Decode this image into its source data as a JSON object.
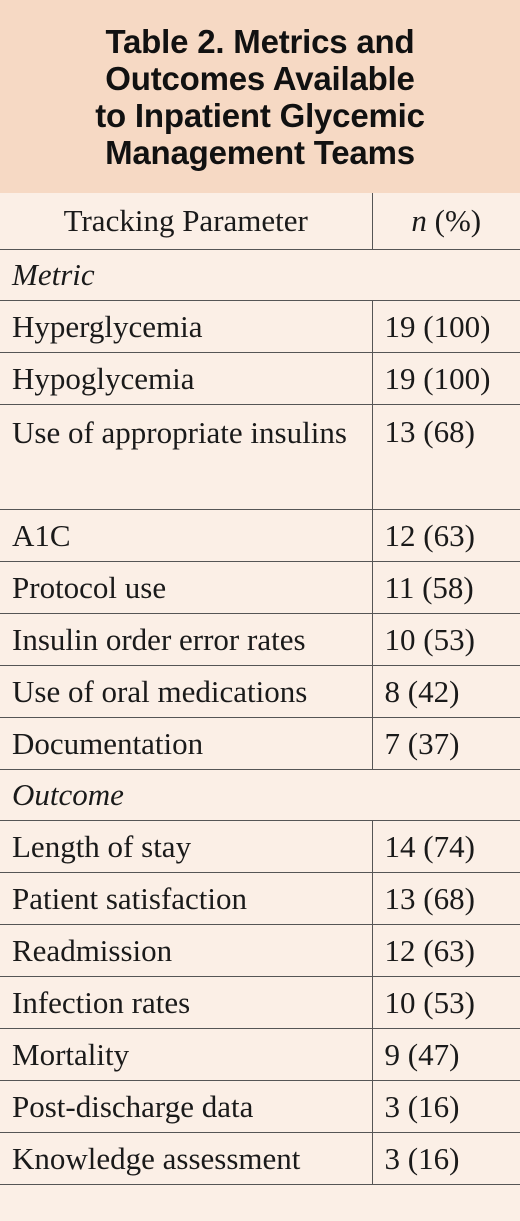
{
  "title": "Table 2. Metrics and\nOutcomes Available\nto Inpatient Glycemic\nManagement Teams",
  "header": {
    "col1": "Tracking Parameter",
    "col2_n": "n",
    "col2_rest": " (%)"
  },
  "sections": [
    {
      "label": "Metric",
      "rows": [
        {
          "parameter": "Hyperglycemia",
          "value": "19 (100)"
        },
        {
          "parameter": "Hypoglycemia",
          "value": "19 (100)"
        },
        {
          "parameter": "Use of appropriate insulins",
          "value": "13 (68)"
        },
        {
          "parameter": "A1C",
          "value": "12 (63)"
        },
        {
          "parameter": "Protocol use",
          "value": "11 (58)"
        },
        {
          "parameter": "Insulin order error rates",
          "value": "10 (53)"
        },
        {
          "parameter": "Use of oral medications",
          "value": "8 (42)"
        },
        {
          "parameter": "Documentation",
          "value": "7 (37)"
        }
      ]
    },
    {
      "label": "Outcome",
      "rows": [
        {
          "parameter": "Length of stay",
          "value": "14 (74)"
        },
        {
          "parameter": "Patient satisfaction",
          "value": "13 (68)"
        },
        {
          "parameter": "Readmission",
          "value": "12 (63)"
        },
        {
          "parameter": "Infection rates",
          "value": "10 (53)"
        },
        {
          "parameter": "Mortality",
          "value": "9 (47)"
        },
        {
          "parameter": "Post-discharge data",
          "value": "3 (16)"
        },
        {
          "parameter": "Knowledge assessment",
          "value": "3 (16)"
        }
      ]
    }
  ]
}
